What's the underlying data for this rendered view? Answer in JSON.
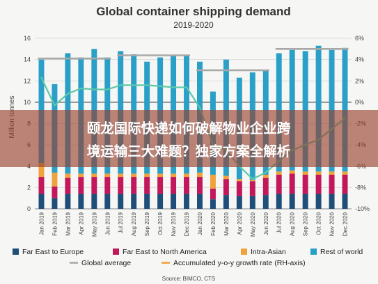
{
  "banner": {
    "line1": "颐龙国际快递如何破解物业企业跨",
    "line2": "境运输三大难题？独家方案全解析"
  },
  "source": "Source: BIMCO, CTS",
  "colors": {
    "far_east_europe": "#1f4e79",
    "far_east_na": "#c2185b",
    "intra_asian": "#f0a23c",
    "rest_of_world": "#2aa0c8",
    "global_average": "#a8a8a8",
    "accumulated": "#5cc8a8"
  },
  "chart_data": {
    "type": "bar",
    "title": "Global container shipping demand",
    "subtitle": "2019-2020",
    "ylabel": "Million tonnes",
    "ylabel_right": "",
    "ylim": [
      0,
      16
    ],
    "ylim_right": [
      -10,
      6
    ],
    "yticks": [
      "0",
      "2",
      "4",
      "6",
      "8",
      "10",
      "12",
      "14",
      "16"
    ],
    "yticks_right": [
      "-10%",
      "-8%",
      "-6%",
      "-4%",
      "-2%",
      "0%",
      "2%",
      "4%",
      "6%"
    ],
    "grid": true,
    "categories": [
      "Jan 2019",
      "Feb 2019",
      "Mar 2019",
      "Apr 2019",
      "May 2019",
      "Jun 2019",
      "Jul 2019",
      "Aug 2019",
      "Sep 2019",
      "Oct 2019",
      "Nov 2019",
      "Dec 2019",
      "Jan 2020",
      "Feb 2020",
      "Mar 2020",
      "Apr 2020",
      "May 2020",
      "Jun 2020",
      "Jul 2020",
      "Aug 2020",
      "Sep 2020",
      "Oct 2020",
      "Nov 2020",
      "Dec 2020"
    ],
    "series": [
      {
        "name": "Far East to Europe",
        "key": "far_east_europe",
        "values": [
          1.4,
          1.0,
          1.4,
          1.4,
          1.4,
          1.4,
          1.4,
          1.4,
          1.4,
          1.4,
          1.4,
          1.4,
          1.4,
          0.9,
          1.3,
          1.2,
          1.2,
          1.3,
          1.4,
          1.4,
          1.4,
          1.4,
          1.4,
          1.4
        ]
      },
      {
        "name": "Far East to North America",
        "key": "far_east_na",
        "values": [
          1.6,
          1.1,
          1.5,
          1.6,
          1.6,
          1.6,
          1.6,
          1.6,
          1.6,
          1.6,
          1.6,
          1.6,
          1.6,
          1.0,
          1.5,
          1.4,
          1.4,
          1.6,
          1.8,
          1.9,
          1.8,
          1.8,
          1.8,
          1.8
        ]
      },
      {
        "name": "Intra-Asian",
        "key": "intra_asian",
        "values": [
          1.3,
          1.3,
          0.4,
          0.3,
          0.3,
          0.3,
          0.3,
          0.3,
          0.3,
          0.3,
          0.3,
          0.3,
          0.4,
          1.3,
          0.3,
          0.2,
          0.1,
          0.3,
          0.3,
          0.3,
          0.3,
          0.3,
          0.3,
          0.3
        ]
      },
      {
        "name": "Rest of world",
        "key": "rest_of_world",
        "values": [
          9.7,
          8.3,
          11.3,
          10.9,
          11.7,
          10.9,
          11.5,
          11.2,
          10.5,
          10.9,
          11.1,
          11.1,
          10.4,
          7.8,
          10.9,
          9.5,
          10.1,
          9.8,
          11.1,
          11.3,
          11.3,
          11.8,
          11.4,
          11.6
        ]
      }
    ],
    "global_average": {
      "name": "Global average",
      "segments": [
        {
          "from": "Jan 2019",
          "to": "Jun 2019",
          "value": 14.1
        },
        {
          "from": "Jul 2019",
          "to": "Dec 2019",
          "value": 14.4
        },
        {
          "from": "Jan 2020",
          "to": "Jun 2020",
          "value": 13.0
        },
        {
          "from": "Jul 2020",
          "to": "Dec 2020",
          "value": 15.0
        }
      ]
    },
    "accumulated_growth": {
      "name": "Accumulated y-o-y growth rate (RH-axis)",
      "axis": "right",
      "values": [
        2.3,
        -0.3,
        0.8,
        1.3,
        1.2,
        1.2,
        1.6,
        1.6,
        1.6,
        1.5,
        1.4,
        1.4,
        -0.5,
        -4.0,
        -4.5,
        -6.0,
        -7.2,
        -6.6,
        -5.5,
        -4.5,
        -4.0,
        -3.5,
        -2.5,
        -1.5
      ]
    },
    "legend": [
      {
        "label": "Far East to Europe",
        "key": "far_east_europe",
        "kind": "box"
      },
      {
        "label": "Far East to North America",
        "key": "far_east_na",
        "kind": "box"
      },
      {
        "label": "Intra-Asian",
        "key": "intra_asian",
        "kind": "box"
      },
      {
        "label": "Rest of world",
        "key": "rest_of_world",
        "kind": "box"
      },
      {
        "label": "Global average",
        "key": "global_average",
        "kind": "line"
      },
      {
        "label": "Accumulated y-o-y growth rate (RH-axis)",
        "key": "accumulated",
        "kind": "line"
      }
    ],
    "legend_position": "bottom"
  }
}
